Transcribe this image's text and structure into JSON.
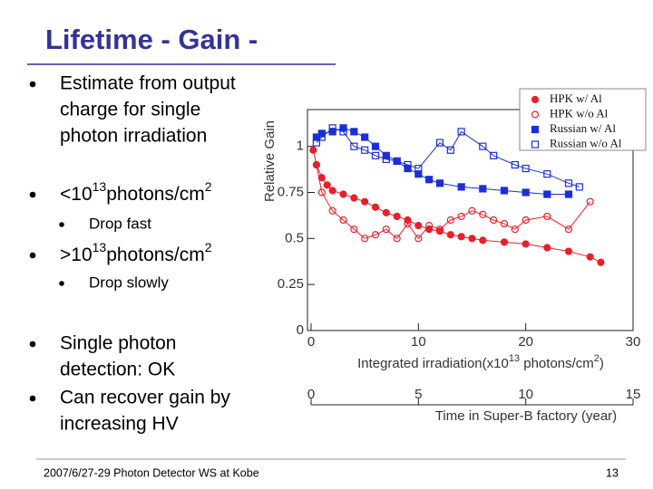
{
  "title": "Lifetime - Gain -",
  "items": [
    {
      "lines": [
        "Estimate from output",
        "charge for single",
        "photon irradiation"
      ]
    },
    {
      "segments": [
        "<10",
        "13",
        "photons/cm",
        "2"
      ]
    },
    {
      "lines": [
        "Drop fast"
      ]
    },
    {
      "segments": [
        ">10",
        "13",
        "photons/cm",
        "2"
      ]
    },
    {
      "lines": [
        "Drop slowly"
      ]
    },
    {
      "lines": [
        "Single photon",
        "detection: OK"
      ]
    },
    {
      "lines": [
        "Can recover gain by",
        "increasing HV"
      ]
    }
  ],
  "footer": "2007/6/27-29 Photon Detector WS at Kobe",
  "page_number": "13",
  "chart_data": {
    "type": "scatter",
    "ylabel": "Relative Gain",
    "xlabel": [
      "Integrated irradiation(x10",
      "13",
      " photons/cm",
      "2",
      ")"
    ],
    "x2label": "Time in Super-B factory (year)",
    "xlim": [
      0,
      30
    ],
    "xticks": [
      0,
      10,
      20,
      30
    ],
    "x2lim": [
      0,
      15
    ],
    "x2ticks": [
      0,
      5,
      10,
      15
    ],
    "ylim": [
      0,
      1.2
    ],
    "yticks": [
      0,
      0.25,
      0.5,
      0.75,
      1
    ],
    "series": [
      {
        "name": "HPK w/ Al",
        "color": "#e8202a",
        "marker": "circle",
        "filled": true,
        "x": [
          0.2,
          0.5,
          1,
          1.5,
          2,
          3,
          4,
          5,
          6,
          7,
          8,
          9,
          10,
          11,
          12,
          13,
          14,
          15,
          16,
          18,
          20,
          22,
          24,
          26,
          27
        ],
        "values": [
          0.98,
          0.9,
          0.83,
          0.79,
          0.76,
          0.74,
          0.72,
          0.7,
          0.67,
          0.64,
          0.62,
          0.6,
          0.57,
          0.55,
          0.54,
          0.52,
          0.51,
          0.5,
          0.49,
          0.48,
          0.47,
          0.45,
          0.43,
          0.4,
          0.37
        ]
      },
      {
        "name": "HPK w/o Al",
        "color": "#e8202a",
        "marker": "circle",
        "filled": false,
        "x": [
          0.5,
          1,
          2,
          3,
          4,
          5,
          6,
          7,
          8,
          9,
          10,
          11,
          12,
          13,
          14,
          15,
          16,
          17,
          18,
          19,
          20,
          22,
          24,
          26
        ],
        "values": [
          0.9,
          0.75,
          0.65,
          0.6,
          0.55,
          0.5,
          0.52,
          0.55,
          0.5,
          0.58,
          0.5,
          0.57,
          0.55,
          0.6,
          0.62,
          0.65,
          0.63,
          0.6,
          0.58,
          0.55,
          0.6,
          0.62,
          0.55,
          0.7
        ]
      },
      {
        "name": "Russian w/ Al",
        "color": "#1a2fd8",
        "marker": "square",
        "filled": true,
        "x": [
          0.5,
          1,
          2,
          3,
          4,
          5,
          6,
          7,
          8,
          9,
          10,
          11,
          12,
          14,
          16,
          18,
          20,
          22,
          24
        ],
        "values": [
          1.05,
          1.07,
          1.08,
          1.1,
          1.08,
          1.05,
          1.0,
          0.95,
          0.92,
          0.88,
          0.85,
          0.82,
          0.8,
          0.78,
          0.77,
          0.76,
          0.75,
          0.74,
          0.74
        ]
      },
      {
        "name": "Russian w/o Al",
        "color": "#1a2fd8",
        "marker": "square",
        "filled": false,
        "x": [
          0.5,
          1,
          2,
          3,
          4,
          5,
          6,
          7,
          8,
          9,
          10,
          12,
          13,
          14,
          16,
          17,
          19,
          20,
          22,
          24,
          25
        ],
        "values": [
          1.02,
          1.05,
          1.1,
          1.08,
          1.0,
          0.98,
          0.95,
          0.93,
          0.92,
          0.9,
          0.88,
          1.02,
          0.98,
          1.08,
          1.0,
          0.95,
          0.9,
          0.88,
          0.85,
          0.8,
          0.78
        ]
      }
    ]
  }
}
